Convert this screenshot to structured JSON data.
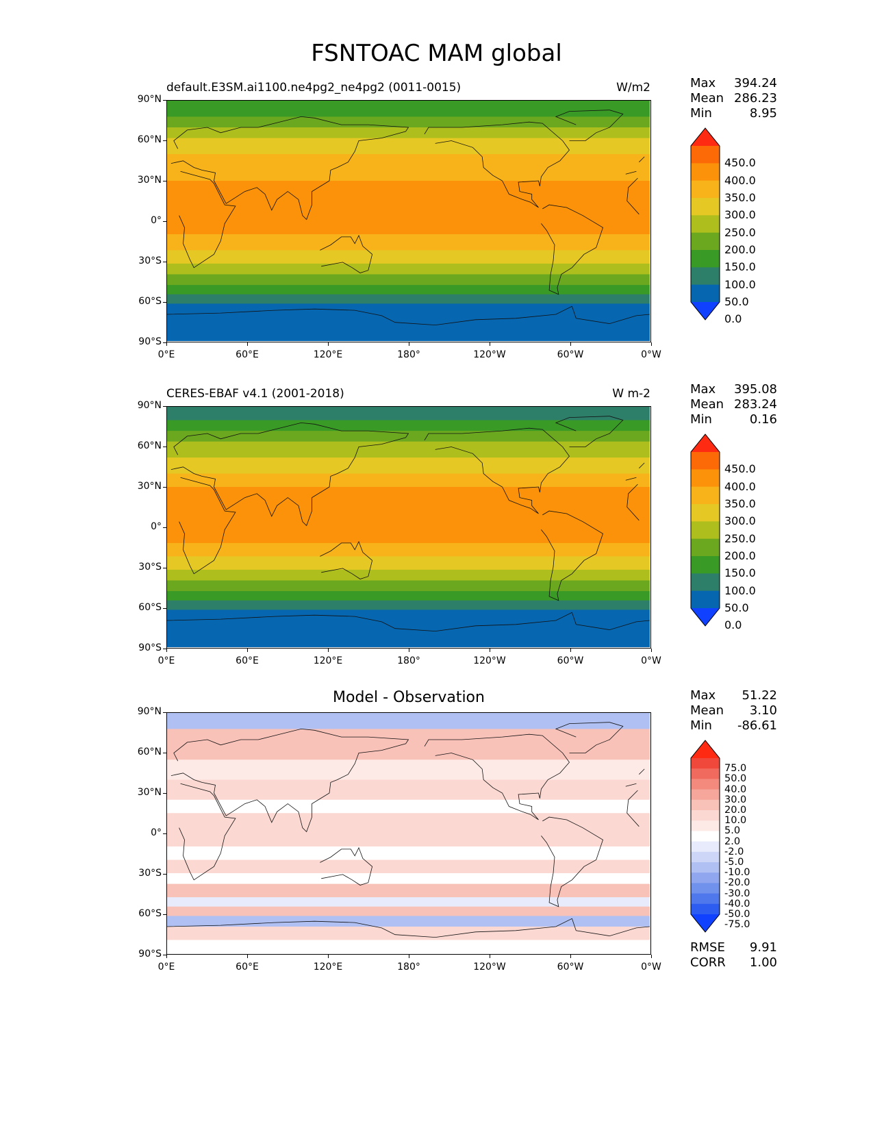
{
  "title": "FSNTOAC MAM global",
  "xticks": [
    "0°E",
    "60°E",
    "120°E",
    "180°",
    "120°W",
    "60°W",
    "0°W"
  ],
  "yticks": [
    "90°N",
    "60°N",
    "30°N",
    "0°",
    "30°S",
    "60°S",
    "90°S"
  ],
  "panels": [
    {
      "title_left": "default.E3SM.ai1100.ne4pg2_ne4pg2 (0011-0015)",
      "title_right": "W/m2",
      "title_center": "",
      "stats": {
        "max_label": "Max",
        "max": "394.24",
        "mean_label": "Mean",
        "mean": "286.23",
        "min_label": "Min",
        "min": "8.95"
      },
      "colorbar": {
        "levels": [
          "450.0",
          "400.0",
          "350.0",
          "300.0",
          "250.0",
          "200.0",
          "150.0",
          "100.0",
          "50.0",
          "0.0"
        ],
        "colors": [
          "#ff2a12",
          "#fb6a06",
          "#fb9209",
          "#f8b31b",
          "#e5c824",
          "#aebf1d",
          "#6ba81f",
          "#3a9a26",
          "#2e7f6a",
          "#0766b0",
          "#1041ff"
        ]
      }
    },
    {
      "title_left": "CERES-EBAF v4.1 (2001-2018)",
      "title_right": "W m-2",
      "title_center": "",
      "stats": {
        "max_label": "Max",
        "max": "395.08",
        "mean_label": "Mean",
        "mean": "283.24",
        "min_label": "Min",
        "min": "0.16"
      },
      "colorbar": {
        "levels": [
          "450.0",
          "400.0",
          "350.0",
          "300.0",
          "250.0",
          "200.0",
          "150.0",
          "100.0",
          "50.0",
          "0.0"
        ],
        "colors": [
          "#ff2a12",
          "#fb6a06",
          "#fb9209",
          "#f8b31b",
          "#e5c824",
          "#aebf1d",
          "#6ba81f",
          "#3a9a26",
          "#2e7f6a",
          "#0766b0",
          "#1041ff"
        ]
      }
    },
    {
      "title_left": "",
      "title_right": "",
      "title_center": "Model - Observation",
      "stats": {
        "max_label": "Max",
        "max": "51.22",
        "mean_label": "Mean",
        "mean": "3.10",
        "min_label": "Min",
        "min": "-86.61"
      },
      "colorbar": {
        "levels": [
          "75.0",
          "50.0",
          "40.0",
          "30.0",
          "20.0",
          "10.0",
          "5.0",
          "2.0",
          "-2.0",
          "-5.0",
          "-10.0",
          "-20.0",
          "-30.0",
          "-40.0",
          "-50.0",
          "-75.0"
        ],
        "colors": [
          "#ff2a12",
          "#f0483a",
          "#f16a5e",
          "#f48a7e",
          "#f6a69b",
          "#f9c2b9",
          "#fbd8d2",
          "#fdeae6",
          "#ffffff",
          "#e7ebfb",
          "#cdd6f7",
          "#b0c0f2",
          "#90a6ee",
          "#7091ec",
          "#4f78ec",
          "#2c5df0",
          "#1041ff"
        ]
      },
      "footer": {
        "rmse_label": "RMSE",
        "rmse": "9.91",
        "corr_label": "CORR",
        "corr": "1.00"
      }
    }
  ],
  "chart_data": [
    {
      "type": "heatmap",
      "title": "default.E3SM.ai1100.ne4pg2_ne4pg2 (0011-0015)",
      "units": "W/m2",
      "xlim": [
        0,
        360
      ],
      "ylim": [
        -90,
        90
      ],
      "levels": [
        0,
        50,
        100,
        150,
        200,
        250,
        300,
        350,
        400,
        450
      ],
      "zonal_bands": [
        {
          "lat": [
            78,
            90
          ],
          "value": 100
        },
        {
          "lat": [
            70,
            78
          ],
          "value": 150
        },
        {
          "lat": [
            62,
            70
          ],
          "value": 200
        },
        {
          "lat": [
            50,
            62
          ],
          "value": 250
        },
        {
          "lat": [
            40,
            50
          ],
          "value": 300
        },
        {
          "lat": [
            30,
            40
          ],
          "value": 325
        },
        {
          "lat": [
            -10,
            30
          ],
          "value": 375
        },
        {
          "lat": [
            -22,
            -10
          ],
          "value": 325
        },
        {
          "lat": [
            -32,
            -22
          ],
          "value": 275
        },
        {
          "lat": [
            -40,
            -32
          ],
          "value": 225
        },
        {
          "lat": [
            -48,
            -40
          ],
          "value": 175
        },
        {
          "lat": [
            -55,
            -48
          ],
          "value": 125
        },
        {
          "lat": [
            -62,
            -55
          ],
          "value": 90
        },
        {
          "lat": [
            -90,
            -62
          ],
          "value": 25
        }
      ],
      "stats": {
        "max": 394.24,
        "mean": 286.23,
        "min": 8.95
      }
    },
    {
      "type": "heatmap",
      "title": "CERES-EBAF v4.1 (2001-2018)",
      "units": "W m-2",
      "xlim": [
        0,
        360
      ],
      "ylim": [
        -90,
        90
      ],
      "levels": [
        0,
        50,
        100,
        150,
        200,
        250,
        300,
        350,
        400,
        450
      ],
      "zonal_bands": [
        {
          "lat": [
            80,
            90
          ],
          "value": 75
        },
        {
          "lat": [
            72,
            80
          ],
          "value": 125
        },
        {
          "lat": [
            64,
            72
          ],
          "value": 175
        },
        {
          "lat": [
            52,
            64
          ],
          "value": 225
        },
        {
          "lat": [
            40,
            52
          ],
          "value": 275
        },
        {
          "lat": [
            30,
            40
          ],
          "value": 325
        },
        {
          "lat": [
            -12,
            30
          ],
          "value": 375
        },
        {
          "lat": [
            -22,
            -12
          ],
          "value": 325
        },
        {
          "lat": [
            -32,
            -22
          ],
          "value": 275
        },
        {
          "lat": [
            -40,
            -32
          ],
          "value": 225
        },
        {
          "lat": [
            -48,
            -40
          ],
          "value": 175
        },
        {
          "lat": [
            -55,
            -48
          ],
          "value": 125
        },
        {
          "lat": [
            -62,
            -55
          ],
          "value": 90
        },
        {
          "lat": [
            -90,
            -62
          ],
          "value": 25
        }
      ],
      "stats": {
        "max": 395.08,
        "mean": 283.24,
        "min": 0.16
      }
    },
    {
      "type": "heatmap",
      "title": "Model - Observation",
      "xlim": [
        0,
        360
      ],
      "ylim": [
        -90,
        90
      ],
      "levels": [
        -75,
        -50,
        -40,
        -30,
        -20,
        -10,
        -5,
        -2,
        2,
        5,
        10,
        20,
        30,
        40,
        50,
        75
      ],
      "zonal_bands": [
        {
          "lat": [
            78,
            90
          ],
          "value": -20
        },
        {
          "lat": [
            55,
            78
          ],
          "value": 10
        },
        {
          "lat": [
            40,
            55
          ],
          "value": 3
        },
        {
          "lat": [
            25,
            40
          ],
          "value": 8
        },
        {
          "lat": [
            15,
            25
          ],
          "value": 0
        },
        {
          "lat": [
            -10,
            15
          ],
          "value": 8
        },
        {
          "lat": [
            -20,
            -10
          ],
          "value": 0
        },
        {
          "lat": [
            -30,
            -20
          ],
          "value": 7
        },
        {
          "lat": [
            -38,
            -30
          ],
          "value": 0
        },
        {
          "lat": [
            -48,
            -38
          ],
          "value": 12
        },
        {
          "lat": [
            -55,
            -48
          ],
          "value": -4
        },
        {
          "lat": [
            -62,
            -55
          ],
          "value": 10
        },
        {
          "lat": [
            -70,
            -62
          ],
          "value": -15
        },
        {
          "lat": [
            -80,
            -70
          ],
          "value": 6
        },
        {
          "lat": [
            -90,
            -80
          ],
          "value": 1
        }
      ],
      "stats": {
        "max": 51.22,
        "mean": 3.1,
        "min": -86.61,
        "rmse": 9.91,
        "corr": 1.0
      }
    }
  ]
}
